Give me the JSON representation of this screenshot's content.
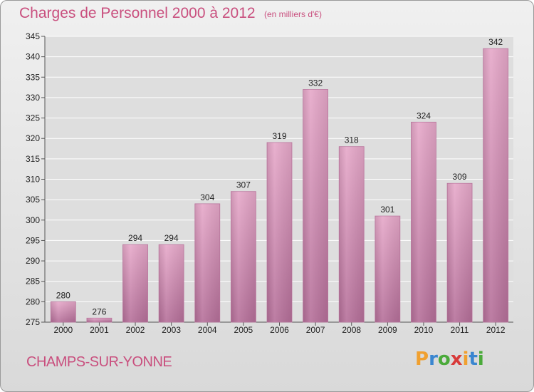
{
  "header": {
    "title": "Charges de Personnel 2000 à 2012",
    "unit": "(en milliers d'€)"
  },
  "commune": "CHAMPS-SUR-YONNE",
  "logo": {
    "letters": [
      "P",
      "r",
      "o",
      "x",
      "i",
      "t",
      "i"
    ],
    "colors": [
      "#f0a030",
      "#3a86d0",
      "#4aaa3a",
      "#d83a3a",
      "#f0a030",
      "#3a86d0",
      "#4aaa3a"
    ]
  },
  "chart_data": {
    "type": "bar",
    "categories": [
      "2000",
      "2001",
      "2002",
      "2003",
      "2004",
      "2005",
      "2006",
      "2007",
      "2008",
      "2009",
      "2010",
      "2011",
      "2012"
    ],
    "values": [
      280,
      276,
      294,
      294,
      304,
      307,
      319,
      332,
      318,
      301,
      324,
      309,
      342
    ],
    "title": "Charges de Personnel 2000 à 2012",
    "subtitle": "(en milliers d'€)",
    "ylim": [
      275,
      345
    ],
    "yticks": [
      275,
      280,
      285,
      290,
      295,
      300,
      305,
      310,
      315,
      320,
      325,
      330,
      335,
      340,
      345
    ],
    "grid": true,
    "bar_color": "#dd9bbe"
  }
}
